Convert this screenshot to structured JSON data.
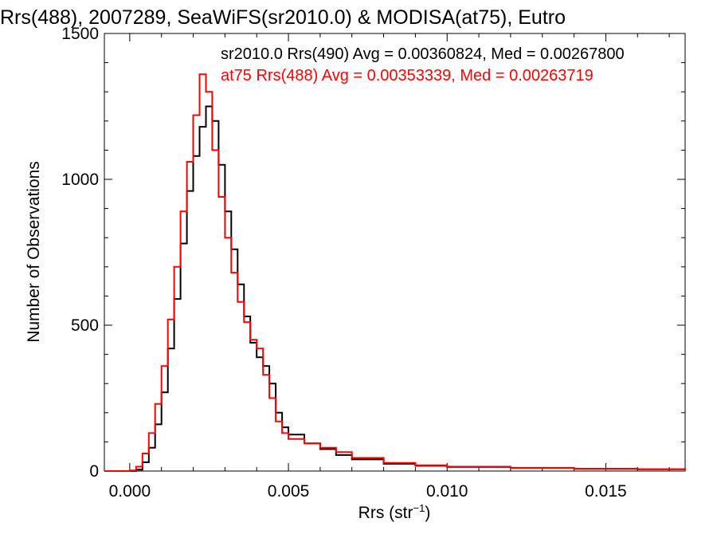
{
  "chart_data": {
    "type": "line",
    "title": "Rrs(488), 2007289, SeaWiFS(sr2010.0) & MODISA(at75), Eutro",
    "xlabel": "Rrs (str",
    "xlabel_sup": "−1",
    "xlabel_close": ")",
    "ylabel": "Number of Observations",
    "xlim": [
      -0.0008,
      0.0175
    ],
    "ylim": [
      0,
      1500
    ],
    "x_ticks": [
      0.0,
      0.005,
      0.01,
      0.015
    ],
    "x_tick_labels": [
      "0.000",
      "0.005",
      "0.010",
      "0.015"
    ],
    "y_ticks": [
      0,
      500,
      1000,
      1500
    ],
    "y_tick_labels": [
      "0",
      "500",
      "1000",
      "1500"
    ],
    "grid": false,
    "legend_position": "top-right",
    "series": [
      {
        "name": "sr2010.0 Rrs(490) Avg = 0.00360824, Med = 0.00267800",
        "color": "#000000",
        "points": [
          [
            -0.0008,
            0
          ],
          [
            0.0,
            0
          ],
          [
            0.0002,
            5
          ],
          [
            0.0004,
            30
          ],
          [
            0.0006,
            80
          ],
          [
            0.0008,
            160
          ],
          [
            0.001,
            270
          ],
          [
            0.0012,
            420
          ],
          [
            0.0014,
            590
          ],
          [
            0.0016,
            780
          ],
          [
            0.0018,
            960
          ],
          [
            0.002,
            1080
          ],
          [
            0.0022,
            1180
          ],
          [
            0.0024,
            1250
          ],
          [
            0.0026,
            1200
          ],
          [
            0.0028,
            1050
          ],
          [
            0.003,
            890
          ],
          [
            0.0032,
            760
          ],
          [
            0.0034,
            640
          ],
          [
            0.0036,
            530
          ],
          [
            0.0038,
            440
          ],
          [
            0.004,
            390
          ],
          [
            0.0042,
            360
          ],
          [
            0.0044,
            300
          ],
          [
            0.0046,
            200
          ],
          [
            0.0048,
            150
          ],
          [
            0.005,
            125
          ],
          [
            0.0055,
            95
          ],
          [
            0.006,
            75
          ],
          [
            0.0065,
            55
          ],
          [
            0.007,
            40
          ],
          [
            0.008,
            25
          ],
          [
            0.009,
            18
          ],
          [
            0.01,
            14
          ],
          [
            0.012,
            10
          ],
          [
            0.014,
            8
          ],
          [
            0.016,
            6
          ],
          [
            0.0175,
            4
          ]
        ]
      },
      {
        "name": "at75 Rrs(488) Avg = 0.00353339, Med = 0.00263719",
        "color": "#ff0000",
        "points": [
          [
            -0.0008,
            0
          ],
          [
            0.0,
            2
          ],
          [
            0.0002,
            15
          ],
          [
            0.0004,
            60
          ],
          [
            0.0006,
            130
          ],
          [
            0.0008,
            230
          ],
          [
            0.001,
            360
          ],
          [
            0.0012,
            520
          ],
          [
            0.0014,
            700
          ],
          [
            0.0016,
            890
          ],
          [
            0.0018,
            1060
          ],
          [
            0.002,
            1220
          ],
          [
            0.0022,
            1360
          ],
          [
            0.0024,
            1300
          ],
          [
            0.0026,
            1100
          ],
          [
            0.0028,
            940
          ],
          [
            0.003,
            800
          ],
          [
            0.0032,
            680
          ],
          [
            0.0034,
            580
          ],
          [
            0.0036,
            510
          ],
          [
            0.0038,
            450
          ],
          [
            0.004,
            420
          ],
          [
            0.0042,
            330
          ],
          [
            0.0044,
            250
          ],
          [
            0.0046,
            170
          ],
          [
            0.0048,
            130
          ],
          [
            0.005,
            110
          ],
          [
            0.0055,
            95
          ],
          [
            0.006,
            80
          ],
          [
            0.0065,
            65
          ],
          [
            0.007,
            45
          ],
          [
            0.008,
            28
          ],
          [
            0.009,
            20
          ],
          [
            0.01,
            15
          ],
          [
            0.012,
            11
          ],
          [
            0.014,
            8
          ],
          [
            0.016,
            6
          ],
          [
            0.0175,
            5
          ]
        ]
      }
    ]
  }
}
